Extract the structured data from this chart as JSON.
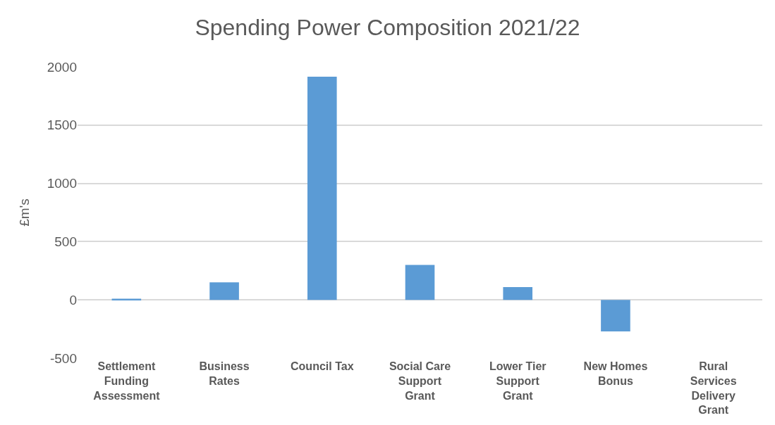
{
  "chart_data": {
    "type": "bar",
    "title": "Spending Power Composition 2021/22",
    "ylabel": "£m's",
    "categories": [
      "Settlement Funding Assessment",
      "Business Rates",
      "Council Tax",
      "Social Care Support Grant",
      "Lower Tier Support Grant",
      "New Homes Bonus",
      "Rural Services Delivery Grant"
    ],
    "values": [
      10,
      150,
      1915,
      300,
      110,
      -270,
      0
    ],
    "color": "#5b9bd5",
    "ylim": [
      -500,
      2000
    ],
    "yticks": [
      -500,
      0,
      500,
      1000,
      1500,
      2000
    ],
    "grid": "y"
  }
}
